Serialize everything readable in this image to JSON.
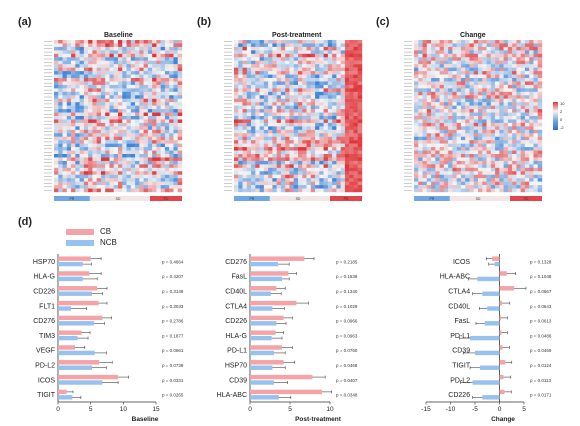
{
  "panel_labels": {
    "a": "(a)",
    "b": "(b)",
    "c": "(c)",
    "d": "(d)"
  },
  "heatmap_titles": {
    "a": "Baseline",
    "b": "Post-treatment",
    "c": "Change"
  },
  "heatmap_colorbar_ticks": [
    "10",
    "2",
    "0",
    "-2"
  ],
  "heatmap_group_labels": [
    "PR",
    "SD",
    "PD"
  ],
  "colors": {
    "cb": "#f4a3a6",
    "ncb": "#98c2ee",
    "heat_high": "#e0353a",
    "heat_low": "#3f86d8",
    "heat_mid": "#f5f5f5"
  },
  "legend": {
    "cb": "CB",
    "ncb": "NCB"
  },
  "chart_data": [
    {
      "type": "bar",
      "orientation": "horizontal",
      "xlabel": "Baseline",
      "xlim": [
        0,
        15
      ],
      "xticks": [
        "0",
        "5",
        "10",
        "15"
      ],
      "categories": [
        "HSP70",
        "HLA-G",
        "CD226",
        "FLT1",
        "CD276",
        "TIM3",
        "VEGF",
        "PD-L2",
        "ICOS",
        "TIGIT"
      ],
      "p_values": [
        "p = 0.4664",
        "p = 0.4207",
        "p = 0.3148",
        "p = 0.3033",
        "p = 0.2786",
        "p = 0.1877",
        "p = 0.0661",
        "p = 0.0739",
        "p = 0.0331",
        "p = 0.0265"
      ],
      "series": [
        {
          "name": "CB",
          "values": [
            5.0,
            4.8,
            6.0,
            6.2,
            6.8,
            3.6,
            2.6,
            6.3,
            9.2,
            1.3
          ],
          "errors": [
            1.6,
            1.8,
            1.5,
            1.3,
            1.4,
            1.3,
            1.5,
            2.0,
            1.6,
            1.0
          ]
        },
        {
          "name": "NCB",
          "values": [
            3.8,
            3.8,
            5.2,
            2.0,
            5.5,
            3.0,
            5.6,
            5.2,
            6.8,
            2.2
          ],
          "errors": [
            1.3,
            2.2,
            1.6,
            2.4,
            1.6,
            1.6,
            1.8,
            2.2,
            2.4,
            1.3
          ]
        }
      ]
    },
    {
      "type": "bar",
      "orientation": "horizontal",
      "xlabel": "Post-treatment",
      "xlim": [
        0,
        10
      ],
      "xticks": [
        "0",
        "5",
        "10"
      ],
      "categories": [
        "CD276",
        "FasL",
        "CD40L",
        "CTLA4",
        "CD226",
        "HLA-G",
        "PD-L1",
        "HSP70",
        "CD39",
        "HLA-ABC"
      ],
      "p_values": [
        "p = 0.2185",
        "p = 0.1539",
        "p = 0.1340",
        "p = 0.1029",
        "p = 0.0966",
        "p = 0.0963",
        "p = 0.0760",
        "p = 0.0468",
        "p = 0.0407",
        "p = 0.0348"
      ],
      "series": [
        {
          "name": "CB",
          "values": [
            6.8,
            4.8,
            3.3,
            5.8,
            4.2,
            3.2,
            4.0,
            4.2,
            7.8,
            9.0
          ],
          "errors": [
            1.2,
            1.0,
            1.1,
            1.5,
            1.1,
            1.0,
            1.3,
            1.4,
            1.6,
            1.2
          ]
        },
        {
          "name": "NCB",
          "values": [
            3.5,
            4.0,
            2.6,
            2.8,
            3.3,
            2.7,
            3.0,
            2.8,
            3.0,
            3.6
          ],
          "errors": [
            1.4,
            0.9,
            1.3,
            1.5,
            1.2,
            1.3,
            1.4,
            1.6,
            1.7,
            1.5
          ]
        }
      ]
    },
    {
      "type": "bar",
      "orientation": "horizontal",
      "xlabel": "Change",
      "xlim": [
        -15,
        5
      ],
      "xticks": [
        "-15",
        "-10",
        "-5",
        "0",
        "5"
      ],
      "categories": [
        "ICOS",
        "HLA-ABC",
        "CTLA4",
        "CD40L",
        "FasL",
        "PD-L1",
        "CD39",
        "TIGIT",
        "PD-L2",
        "CD226"
      ],
      "p_values": [
        "p = 0.1328",
        "p = 0.1048",
        "p = 0.0667",
        "p = 0.0643",
        "p = 0.0613",
        "p = 0.0486",
        "p = 0.0469",
        "p = 0.0124",
        "p = 0.0113",
        "p = 0.0171"
      ],
      "series": [
        {
          "name": "CB",
          "values": [
            -1.5,
            1.5,
            3.0,
            0.5,
            0.3,
            0.4,
            0.6,
            1.2,
            0.8,
            1.0
          ],
          "errors": [
            1.2,
            1.8,
            2.4,
            1.6,
            1.3,
            1.2,
            1.4,
            1.3,
            1.5,
            1.4
          ]
        },
        {
          "name": "NCB",
          "values": [
            -1.0,
            -4.5,
            -3.5,
            -2.5,
            -3.0,
            -6.0,
            -5.0,
            -4.0,
            -5.5,
            -3.5
          ],
          "errors": [
            1.2,
            1.8,
            2.0,
            1.6,
            1.8,
            2.2,
            2.4,
            2.0,
            2.5,
            2.0
          ]
        }
      ]
    }
  ]
}
